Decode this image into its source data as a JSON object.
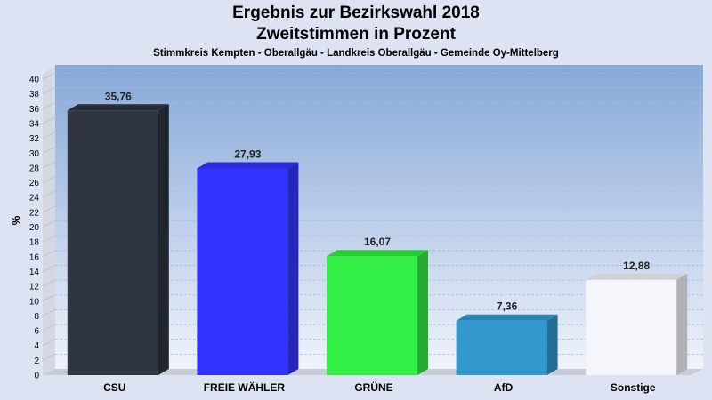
{
  "chart_data": {
    "type": "bar",
    "title": "Ergebnis zur Bezirkswahl 2018",
    "subtitle": "Zweitstimmen in Prozent",
    "caption": "Stimmkreis Kempten - Oberallgäu - Landkreis Oberallgäu - Gemeinde Oy-Mittelberg",
    "ylabel": "%",
    "xlabel": "",
    "ylim": [
      0,
      40
    ],
    "ytick_step": 2,
    "grid": true,
    "categories": [
      "CSU",
      "FREIE WÄHLER",
      "GRÜNE",
      "AfD",
      "Sonstige"
    ],
    "values": [
      35.76,
      27.93,
      16.07,
      7.36,
      12.88
    ],
    "value_labels": [
      "35,76",
      "27,93",
      "16,07",
      "7,36",
      "12,88"
    ],
    "colors": [
      "#2e3440",
      "#3333ff",
      "#33ee44",
      "#3399cc",
      "#f4f6fc"
    ]
  }
}
